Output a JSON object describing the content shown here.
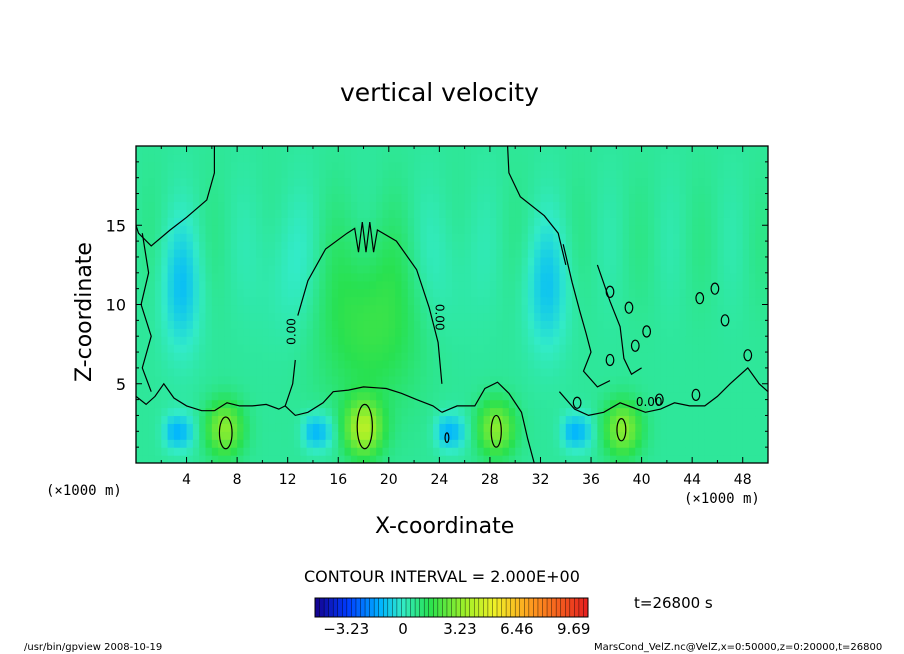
{
  "chart_data": {
    "type": "heatmap",
    "title": "vertical velocity",
    "xlabel": "X-coordinate",
    "ylabel": "Z-coordinate",
    "x_unit": "(×1000 m)",
    "y_unit": "(×1000 m)",
    "xlim": [
      0,
      50
    ],
    "ylim": [
      0,
      20
    ],
    "x_ticks": [
      4,
      8,
      12,
      16,
      20,
      24,
      28,
      32,
      36,
      40,
      44,
      48
    ],
    "y_ticks": [
      5,
      10,
      15
    ],
    "contour_interval_label": "CONTOUR INTERVAL = 2.000E+00",
    "contour_labels": [
      "0.00",
      "0.00",
      "0.00"
    ],
    "time_label": "t=26800 s",
    "colorbar": {
      "min": -5.0,
      "max": 10.5,
      "tick_values": [
        -3.23,
        0,
        3.23,
        6.46,
        9.69
      ],
      "tick_labels": [
        "−3.23",
        "0",
        "3.23",
        "6.46",
        "9.69"
      ]
    },
    "field_description_cells": {
      "updraft_cores_x": [
        7,
        18,
        28.5,
        38.5
      ],
      "updraft_core_z": 2.2
    }
  },
  "footer": {
    "left": "/usr/bin/gpview   2008-10-19",
    "right": "MarsCond_VelZ.nc@VelZ,x=0:50000,z=0:20000,t=26800"
  },
  "colors": {
    "background": "#ffffff",
    "axis": "#000000",
    "field_base": "#33ee88"
  }
}
